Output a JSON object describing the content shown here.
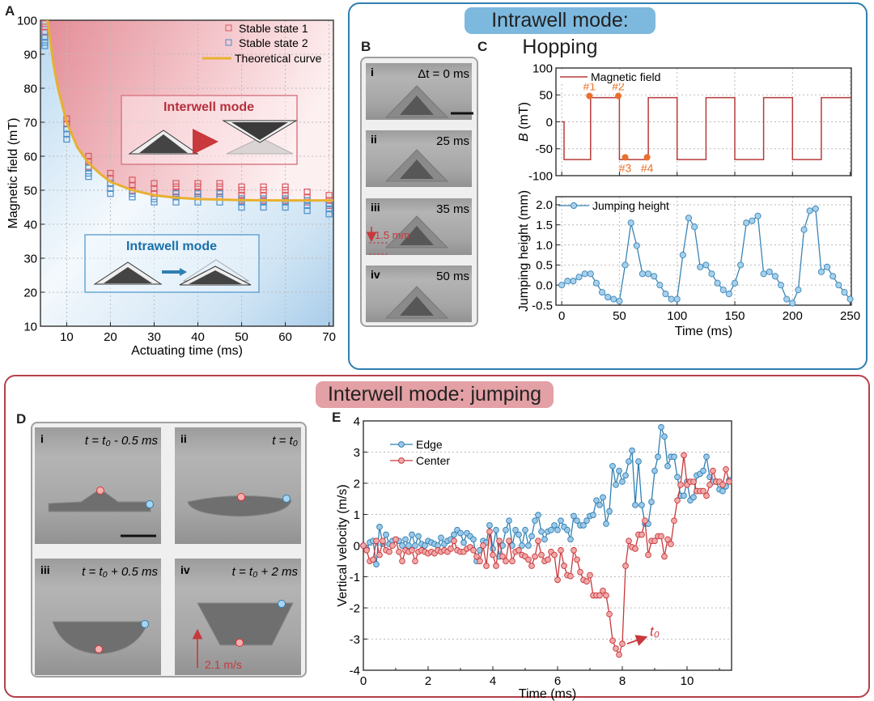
{
  "figure": {
    "panel_labels": {
      "A": "A",
      "B": "B",
      "C": "C",
      "D": "D",
      "E": "E"
    },
    "hopping_title": "Intrawell mode: Hopping",
    "jumping_title": "Interwell mode: jumping",
    "panel_A": {
      "interwell_label": "Interwell mode",
      "intrawell_label": "Intrawell mode"
    },
    "panel_B": {
      "frames": [
        {
          "index": "i",
          "time": "Δt = 0 ms"
        },
        {
          "index": "ii",
          "time": "25 ms"
        },
        {
          "index": "iii",
          "time": "35 ms",
          "annotation": "1.5 mm"
        },
        {
          "index": "iv",
          "time": "50 ms"
        }
      ]
    },
    "panel_D": {
      "frames": [
        {
          "index": "i",
          "time": "t = t₀ - 0.5 ms"
        },
        {
          "index": "ii",
          "time": "t = t₀"
        },
        {
          "index": "iii",
          "time": "t = t₀ + 0.5 ms"
        },
        {
          "index": "iv",
          "time": "t = t₀ + 2 ms",
          "annotation": "2.1 m/s"
        }
      ]
    },
    "colors": {
      "hopping_border": "#2f7fb0",
      "jumping_border": "#b4404a",
      "red": "#c8383c",
      "blue": "#2f7fb0",
      "orange": "#e8702a",
      "theory": "#e8b030"
    }
  },
  "chart_data": [
    {
      "panel": "A",
      "type": "scatter",
      "xlabel": "Actuating time (ms)",
      "ylabel": "Magnetic field (mT)",
      "xlim": [
        4,
        71
      ],
      "ylim": [
        10,
        100
      ],
      "xticks": [
        10,
        20,
        30,
        40,
        50,
        60,
        70
      ],
      "yticks": [
        10,
        20,
        30,
        40,
        50,
        60,
        70,
        80,
        90,
        100
      ],
      "grid": "both",
      "legend": "top-right",
      "series": [
        {
          "name": "Stable state 1",
          "marker": "square",
          "color": "#d9575f",
          "groups": [
            {
              "x": 5,
              "y": [
                95,
                96.5,
                98,
                99
              ]
            },
            {
              "x": 10,
              "y": [
                68,
                69.5,
                71
              ]
            },
            {
              "x": 15,
              "y": [
                57,
                58.5,
                60
              ]
            },
            {
              "x": 20,
              "y": [
                52,
                53.5,
                55
              ]
            },
            {
              "x": 25,
              "y": [
                50,
                51.5,
                53
              ]
            },
            {
              "x": 30,
              "y": [
                49,
                50.5,
                52
              ]
            },
            {
              "x": 35,
              "y": [
                48,
                49.5,
                51,
                52
              ]
            },
            {
              "x": 40,
              "y": [
                48,
                49.5,
                51,
                52
              ]
            },
            {
              "x": 45,
              "y": [
                48,
                49.5,
                51,
                52
              ]
            },
            {
              "x": 50,
              "y": [
                47,
                48.5,
                50,
                51
              ]
            },
            {
              "x": 55,
              "y": [
                47,
                48.5,
                50,
                51
              ]
            },
            {
              "x": 60,
              "y": [
                47,
                48.5,
                50,
                51
              ]
            },
            {
              "x": 65,
              "y": [
                46.5,
                48,
                49.5
              ]
            },
            {
              "x": 70,
              "y": [
                45.5,
                47,
                48.5
              ]
            }
          ]
        },
        {
          "name": "Stable state 2",
          "marker": "square",
          "color": "#4a8fcb",
          "groups": [
            {
              "x": 5,
              "y": [
                92.5,
                93.5,
                95
              ]
            },
            {
              "x": 10,
              "y": [
                65,
                66.5,
                68
              ]
            },
            {
              "x": 15,
              "y": [
                54,
                55,
                56.5
              ]
            },
            {
              "x": 20,
              "y": [
                49,
                50.5,
                52
              ]
            },
            {
              "x": 25,
              "y": [
                48,
                49
              ]
            },
            {
              "x": 30,
              "y": [
                46.5,
                47.5
              ]
            },
            {
              "x": 35,
              "y": [
                46.5,
                48,
                49
              ]
            },
            {
              "x": 40,
              "y": [
                46.5,
                48,
                49
              ]
            },
            {
              "x": 45,
              "y": [
                46.5,
                48,
                49
              ]
            },
            {
              "x": 50,
              "y": [
                45,
                46.5,
                47.5
              ]
            },
            {
              "x": 55,
              "y": [
                45,
                46.5,
                47.5
              ]
            },
            {
              "x": 60,
              "y": [
                45,
                46.5,
                47.5
              ]
            },
            {
              "x": 65,
              "y": [
                44,
                45.5,
                47
              ]
            },
            {
              "x": 70,
              "y": [
                43,
                44.5,
                46
              ]
            }
          ]
        },
        {
          "name": "Theoretical curve",
          "type": "line",
          "color": "#e8b030",
          "points": [
            [
              5.6,
              100
            ],
            [
              7,
              87
            ],
            [
              8,
              80
            ],
            [
              10,
              70
            ],
            [
              12.5,
              62.5
            ],
            [
              15,
              58
            ],
            [
              17.5,
              55
            ],
            [
              20,
              52.5
            ],
            [
              25,
              50
            ],
            [
              30,
              48.5
            ],
            [
              35,
              47.8
            ],
            [
              40,
              47.4
            ],
            [
              50,
              47.1
            ],
            [
              60,
              47
            ],
            [
              71,
              47
            ]
          ]
        }
      ]
    },
    {
      "panel": "C",
      "type": "line",
      "ylabel_var": "B",
      "ylabel_unit": " (mT)",
      "xlim": [
        -5,
        251
      ],
      "ylim": [
        -100,
        100
      ],
      "xticks": [
        0,
        50,
        100,
        150,
        200,
        250
      ],
      "yticks": [
        -100,
        -50,
        0,
        50,
        100
      ],
      "grid": "both",
      "legend": "top-left",
      "series": [
        {
          "name": "Magnetic field",
          "color": "#b83a3a",
          "points": [
            [
              0,
              0
            ],
            [
              2,
              0
            ],
            [
              2,
              -70
            ],
            [
              25,
              -70
            ],
            [
              25,
              45
            ],
            [
              50,
              45
            ],
            [
              50,
              -70
            ],
            [
              75,
              -70
            ],
            [
              75,
              45
            ],
            [
              100,
              45
            ],
            [
              100,
              -70
            ],
            [
              125,
              -70
            ],
            [
              125,
              45
            ],
            [
              150,
              45
            ],
            [
              150,
              -70
            ],
            [
              175,
              -70
            ],
            [
              175,
              45
            ],
            [
              200,
              45
            ],
            [
              200,
              -70
            ],
            [
              225,
              -70
            ],
            [
              225,
              45
            ],
            [
              251,
              45
            ]
          ]
        }
      ],
      "annotations": [
        {
          "label": "#1",
          "x": 24,
          "y": 48,
          "label_pos": "above"
        },
        {
          "label": "#2",
          "x": 49,
          "y": 48,
          "label_pos": "above"
        },
        {
          "label": "#3",
          "x": 55,
          "y": -66,
          "label_pos": "below"
        },
        {
          "label": "#4",
          "x": 74,
          "y": -66,
          "label_pos": "below"
        }
      ]
    },
    {
      "panel": "C",
      "type": "line",
      "xlabel": "Time (ms)",
      "ylabel": "Jumping height (mm)",
      "xlim": [
        -5,
        251
      ],
      "ylim": [
        -0.5,
        2.2
      ],
      "xticks": [
        0,
        50,
        100,
        150,
        200,
        250
      ],
      "yticks": [
        -0.5,
        0,
        0.5,
        1,
        1.5,
        2
      ],
      "ytick_labels": [
        "-0.5",
        "0.0",
        "0.5",
        "1.0",
        "1.5",
        "2.0"
      ],
      "grid": "both",
      "legend": "top-left",
      "series": [
        {
          "name": "Jumping height",
          "color": "#3a85b5",
          "marker": "circle",
          "x": [
            0,
            5,
            10,
            15,
            20,
            25,
            30,
            35,
            40,
            45,
            50,
            55,
            60,
            65,
            70,
            75,
            80,
            85,
            90,
            95,
            100,
            105,
            110,
            115,
            120,
            125,
            130,
            135,
            140,
            145,
            150,
            155,
            160,
            165,
            170,
            175,
            180,
            185,
            190,
            195,
            200,
            205,
            210,
            215,
            220,
            225,
            230,
            235,
            240,
            245,
            250
          ],
          "y": [
            0,
            0.1,
            0.1,
            0.2,
            0.28,
            0.28,
            0.05,
            -0.18,
            -0.3,
            -0.35,
            -0.4,
            0.5,
            1.55,
            0.98,
            0.28,
            0.28,
            0.22,
            0,
            -0.22,
            -0.35,
            -0.35,
            0.75,
            1.67,
            1.45,
            0.45,
            0.5,
            0.28,
            0.05,
            -0.12,
            -0.22,
            0.05,
            0.5,
            1.55,
            1.6,
            1.72,
            0.28,
            0.33,
            0.22,
            0,
            -0.35,
            -0.45,
            -0.12,
            1.38,
            1.85,
            1.9,
            0.33,
            0.45,
            0.22,
            0,
            -0.18,
            -0.35
          ]
        }
      ]
    },
    {
      "panel": "E",
      "type": "line",
      "xlabel": "Time (ms)",
      "ylabel": "Vertical velocity (m/s)",
      "xlim": [
        0,
        11.375
      ],
      "ylim": [
        -4,
        4
      ],
      "xticks": [
        0,
        2,
        4,
        6,
        8,
        10
      ],
      "yticks": [
        -4,
        -3,
        -2,
        -1,
        0,
        1,
        2,
        3,
        4
      ],
      "grid": "horizontal",
      "legend": "top-left",
      "x": [
        0,
        0.1,
        0.2,
        0.3,
        0.4,
        0.5,
        0.6,
        0.7,
        0.8,
        0.9,
        1,
        1.1,
        1.2,
        1.3,
        1.4,
        1.5,
        1.6,
        1.7,
        1.8,
        1.9,
        2,
        2.1,
        2.2,
        2.3,
        2.4,
        2.5,
        2.6,
        2.7,
        2.8,
        2.9,
        3,
        3.1,
        3.2,
        3.3,
        3.4,
        3.5,
        3.6,
        3.7,
        3.8,
        3.9,
        4,
        4.1,
        4.2,
        4.3,
        4.4,
        4.5,
        4.6,
        4.7,
        4.8,
        4.9,
        5,
        5.1,
        5.2,
        5.3,
        5.4,
        5.5,
        5.6,
        5.7,
        5.8,
        5.9,
        6,
        6.1,
        6.2,
        6.3,
        6.4,
        6.5,
        6.6,
        6.7,
        6.8,
        6.9,
        7,
        7.1,
        7.2,
        7.3,
        7.4,
        7.5,
        7.6,
        7.7,
        7.8,
        7.9,
        8,
        8.1,
        8.2,
        8.3,
        8.4,
        8.5,
        8.6,
        8.7,
        8.8,
        8.9,
        9,
        9.1,
        9.2,
        9.3,
        9.4,
        9.5,
        9.6,
        9.7,
        9.8,
        9.9,
        10,
        10.1,
        10.2,
        10.3,
        10.4,
        10.5,
        10.6,
        10.7,
        10.8,
        10.9,
        11,
        11.1,
        11.2,
        11.3
      ],
      "series": [
        {
          "name": "Edge",
          "color": "#2f7fb0",
          "fill": "#9cc9ea",
          "y": [
            0,
            -0.1,
            0.1,
            0.15,
            -0.6,
            0.6,
            0.05,
            0.35,
            0.05,
            0.15,
            0.2,
            0.15,
            0,
            0.2,
            0,
            0.35,
            0,
            0.3,
            0.05,
            0,
            0.15,
            0.1,
            0.05,
            0,
            0.25,
            0.05,
            0.15,
            0.2,
            0.35,
            0.5,
            0.4,
            0.1,
            0.4,
            0.3,
            0.2,
            -0.5,
            -0.15,
            0.15,
            0.1,
            0.65,
            -0.1,
            0.5,
            -0.35,
            0,
            0.5,
            0.8,
            0,
            0.5,
            0.35,
            0,
            0.5,
            0,
            0.3,
            0.8,
            0.98,
            0.45,
            0.2,
            0.45,
            0.5,
            0.65,
            0.5,
            0.8,
            0.6,
            0.5,
            0.2,
            0.95,
            0.8,
            0.65,
            0.65,
            0.8,
            0.95,
            0.98,
            1.45,
            1.3,
            1.55,
            0.7,
            1.1,
            2.55,
            1.95,
            2.4,
            2.05,
            2.25,
            2.7,
            3.05,
            1.3,
            2.7,
            1.3,
            0.7,
            0.7,
            1.4,
            2.4,
            2.85,
            3.8,
            3.5,
            2.55,
            2.85,
            2.85,
            2.2,
            1.6,
            1.6,
            2.05,
            1.45,
            1.55,
            2.25,
            2.3,
            2.4,
            2.85,
            2.2,
            2.05,
            2.05,
            1.8,
            1.75,
            1.9,
            2.1
          ]
        },
        {
          "name": "Center",
          "color": "#c8383c",
          "fill": "#f2a8a8",
          "y": [
            0,
            -0.15,
            -0.5,
            -0.45,
            0.15,
            -0.3,
            0.15,
            -0.15,
            -0.2,
            0,
            0.2,
            -0.2,
            -0.5,
            -0.15,
            -0.2,
            -0.15,
            -0.5,
            -0.2,
            -0.15,
            -0.2,
            -0.25,
            -0.2,
            -0.25,
            -0.15,
            -0.2,
            -0.15,
            -0.2,
            -0.1,
            0.15,
            -0.15,
            -0.2,
            -0.2,
            -0.1,
            -0.05,
            -0.15,
            -0.35,
            -0.5,
            0,
            -0.65,
            0.45,
            -0.3,
            -0.65,
            0.15,
            -0.35,
            -0.5,
            0.15,
            -0.5,
            -0.2,
            -0.15,
            -0.3,
            -0.35,
            -0.45,
            -0.65,
            -0.35,
            0.15,
            -0.3,
            -0.5,
            -0.45,
            -0.2,
            -0.3,
            -1.1,
            -0.15,
            -0.65,
            -0.95,
            -0.98,
            -0.15,
            -0.45,
            -0.85,
            -1.1,
            -1.15,
            -0.95,
            -1.6,
            -1.6,
            -1.6,
            -1.45,
            -1.6,
            -2.2,
            -3.05,
            -3.3,
            -3.5,
            -3.15,
            -0.65,
            0.15,
            -0.05,
            -0.1,
            0.35,
            0.35,
            0.8,
            -0.3,
            0.15,
            0.15,
            0.3,
            0.3,
            -0.35,
            0.2,
            0.05,
            0.8,
            1.45,
            1.95,
            2.9,
            1.95,
            2.05,
            2.05,
            1.75,
            1.75,
            1.75,
            1.6,
            1.95,
            2.4,
            2.05,
            2.05,
            1.95,
            2.45,
            2.05
          ]
        }
      ],
      "annotations": [
        {
          "label": "t₀",
          "x": 8.85,
          "y": -2.9,
          "arrow_from": [
            8.15,
            -3.15
          ],
          "arrow_to": [
            8.7,
            -2.95
          ]
        }
      ]
    }
  ]
}
